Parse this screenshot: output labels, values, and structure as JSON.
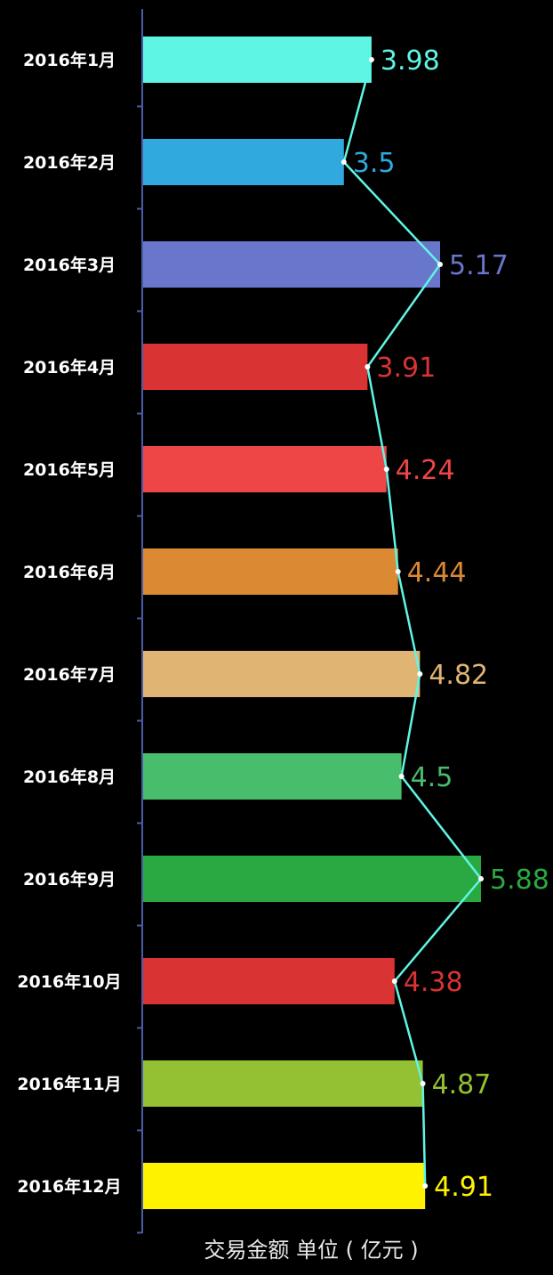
{
  "chart_data": {
    "type": "bar",
    "orientation": "horizontal",
    "categories": [
      "2016年1月",
      "2016年2月",
      "2016年3月",
      "2016年4月",
      "2016年5月",
      "2016年6月",
      "2016年7月",
      "2016年8月",
      "2016年9月",
      "2016年10月",
      "2016年11月",
      "2016年12月"
    ],
    "values": [
      3.98,
      3.5,
      5.17,
      3.91,
      4.24,
      4.44,
      4.82,
      4.5,
      5.88,
      4.38,
      4.87,
      4.91
    ],
    "value_labels": [
      "3.98",
      "3.5",
      "5.17",
      "3.91",
      "4.24",
      "4.44",
      "4.82",
      "4.5",
      "5.88",
      "4.38",
      "4.87",
      "4.91"
    ],
    "bar_colors": [
      "#5ff5e4",
      "#2fa9de",
      "#6876cc",
      "#d93334",
      "#ee4546",
      "#db8933",
      "#e0b472",
      "#48bd6b",
      "#2aa942",
      "#d93334",
      "#93c133",
      "#fff200"
    ],
    "line_overlay": true,
    "line_color": "#5ff5e4",
    "axis_color": "#4a5ca8",
    "footer": "交易金额 单位 ( 亿元 )",
    "grid": false,
    "legend": "none"
  }
}
